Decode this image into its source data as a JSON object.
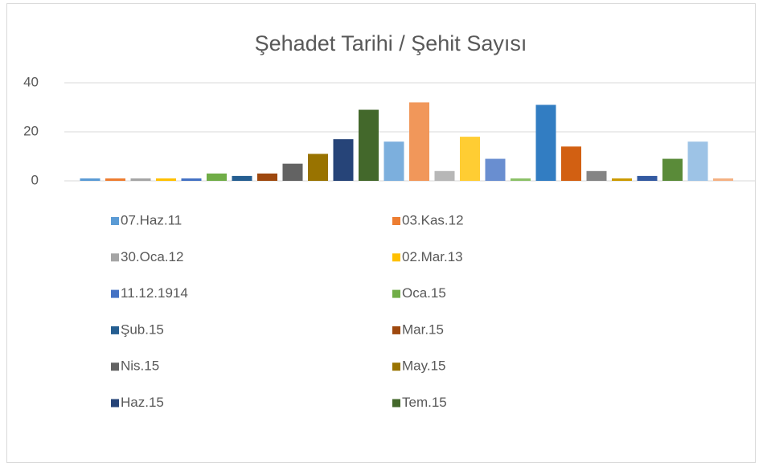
{
  "chart_data": {
    "type": "bar",
    "title": "Şehadet Tarihi / Şehit Sayısı",
    "categories": [
      "07.Haz.11",
      "03.Kas.12",
      "30.Oca.12",
      "02.Mar.13",
      "11.12.1914",
      "Oca.15",
      "Şub.15",
      "Mar.15",
      "Nis.15",
      "May.15",
      "Haz.15",
      "Tem.15",
      null,
      null,
      null,
      null,
      null,
      null,
      null,
      null,
      null,
      null,
      null,
      null,
      null,
      null
    ],
    "values": [
      1,
      1,
      1,
      1,
      1,
      3,
      2,
      3,
      7,
      11,
      17,
      29,
      16,
      32,
      4,
      18,
      9,
      1,
      31,
      14,
      4,
      1,
      2,
      9,
      16,
      1
    ],
    "colors": [
      "#5B9BD5",
      "#ED7D31",
      "#A5A5A5",
      "#FFC000",
      "#4472C4",
      "#70AD47",
      "#255E91",
      "#9E480E",
      "#636363",
      "#997300",
      "#264478",
      "#43682B",
      "#7CAFDD",
      "#F1975A",
      "#B7B7B7",
      "#FFCD33",
      "#698ED0",
      "#8CC168",
      "#327DC2",
      "#D26012",
      "#848484",
      "#CC9A00",
      "#335AA1",
      "#5A8B39",
      "#9DC3E6",
      "#F4B183"
    ],
    "ylim": [
      0,
      40
    ],
    "yticks": [
      0,
      20,
      40
    ],
    "grid": true,
    "legend": "bottom"
  }
}
